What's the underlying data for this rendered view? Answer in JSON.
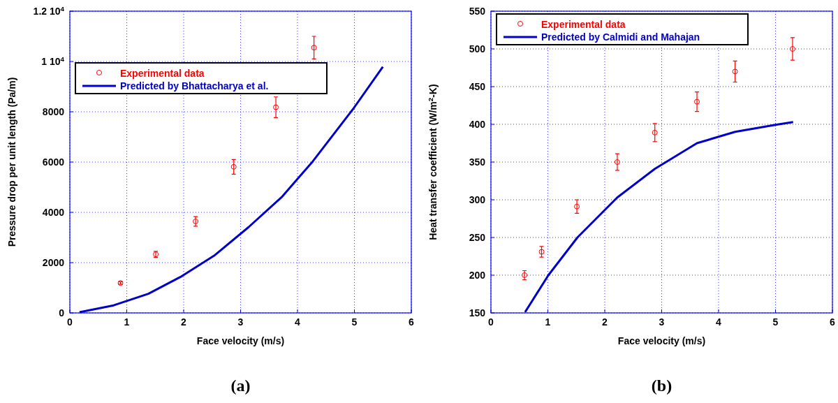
{
  "chart_data": [
    {
      "type": "scatter",
      "xlabel": "Face velocity (m/s)",
      "ylabel": "Pressure drop per unit length (Pa/m)",
      "annotations": [
        "(a)"
      ],
      "xlim": [
        0,
        6
      ],
      "xticks": [
        0,
        1,
        2,
        3,
        4,
        5,
        6
      ],
      "ylim": [
        0,
        12000
      ],
      "yticks": [
        0,
        2000,
        4000,
        6000,
        8000,
        {
          "value": 10000,
          "label": "1 10$^{4}$"
        },
        {
          "value": 12000,
          "label": "1.2 10$^{4}$"
        }
      ],
      "grid": true,
      "legend": "top left",
      "series": [
        {
          "name": "Experimental data",
          "marker": "circle",
          "color": "#ff0000",
          "x": [
            0.89,
            1.51,
            2.21,
            2.88,
            3.62,
            4.29
          ],
          "values": [
            1190,
            2330,
            3640,
            5810,
            8180,
            10550
          ],
          "errors": [
            50,
            120,
            190,
            290,
            410,
            450
          ]
        },
        {
          "name": "Predicted by Bhattacharya et al.",
          "type": "line",
          "color": "#0000cc",
          "x": [
            0.17,
            0.77,
            1.38,
            1.96,
            2.55,
            3.14,
            3.72,
            4.27,
            4.99,
            5.5
          ],
          "values": [
            30,
            300,
            760,
            1450,
            2300,
            3410,
            4600,
            6030,
            8150,
            9790
          ]
        }
      ]
    },
    {
      "type": "scatter",
      "xlabel": "Face velocity (m/s)",
      "ylabel": "Heat transfer coefficient (W/m$^{2}$-K)",
      "annotations": [
        "(b)"
      ],
      "xlim": [
        0,
        6
      ],
      "xticks": [
        0,
        1,
        2,
        3,
        4,
        5,
        6
      ],
      "ylim": [
        150,
        550
      ],
      "yticks": [
        150,
        200,
        250,
        300,
        350,
        400,
        450,
        500,
        550
      ],
      "grid": true,
      "legend": "top left",
      "series": [
        {
          "name": "Experimental data",
          "marker": "circle",
          "color": "#ff0000",
          "x": [
            0.59,
            0.89,
            1.51,
            2.22,
            2.88,
            3.62,
            4.29,
            5.3
          ],
          "values": [
            200,
            231,
            291,
            350,
            389,
            430,
            470,
            500
          ],
          "errors": [
            6,
            7,
            9,
            11,
            12,
            13,
            14,
            15
          ]
        },
        {
          "name": "Predicted by Calmidi and Mahajan",
          "type": "line",
          "color": "#0000cc",
          "x": [
            0.6,
            1.01,
            1.52,
            2.22,
            2.88,
            3.62,
            4.29,
            4.98,
            5.31
          ],
          "values": [
            151,
            200,
            250,
            303,
            341,
            375,
            390,
            399,
            403
          ]
        }
      ]
    }
  ]
}
